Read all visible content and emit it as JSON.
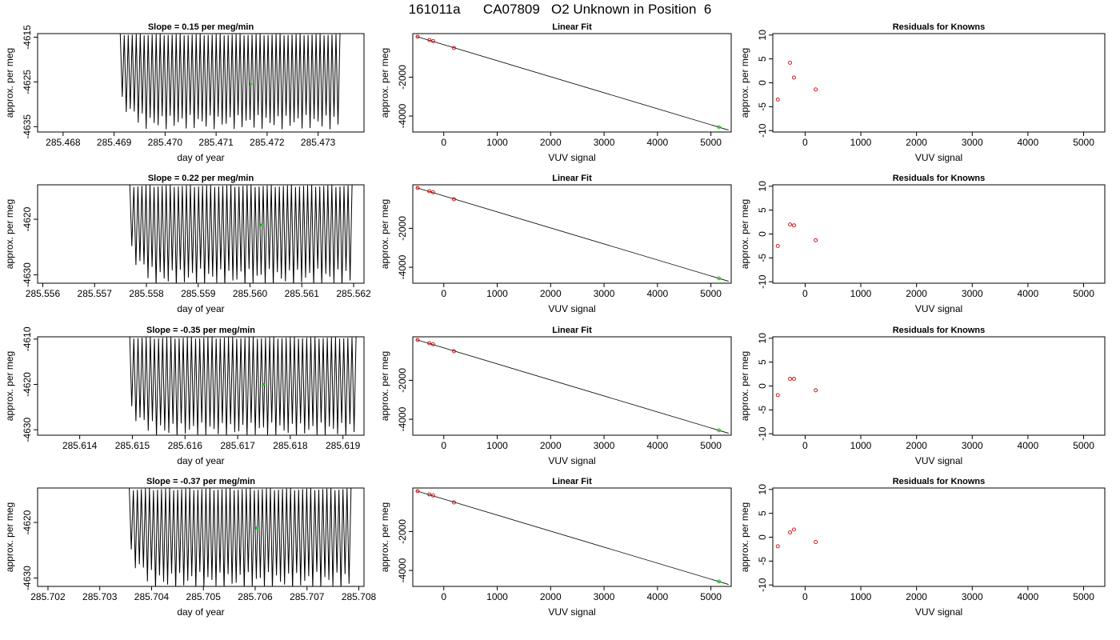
{
  "page": {
    "title": "161011a      CA07809   O2 Unknown in Position  6"
  },
  "chart_data": [
    {
      "type": "line",
      "title": "Slope =  0.15  per meg/min",
      "xlabel": "day of year",
      "ylabel": "approx. per meg",
      "xlim": [
        285.4675,
        285.4739
      ],
      "ylim": [
        -4636.2,
        -4614.2
      ],
      "xticks": [
        "285.468",
        "285.469",
        "285.470",
        "285.471",
        "285.472",
        "285.473"
      ],
      "xtick_values": [
        285.468,
        285.469,
        285.47,
        285.471,
        285.472,
        285.473
      ],
      "yticks": [
        "-4615",
        "-4625",
        "-4635"
      ],
      "ytick_values": [
        -4615,
        -4625,
        -4635
      ],
      "signal": {
        "x_start": 285.46912,
        "x_end": 285.47343,
        "cycles": 55,
        "upper": -4614.2,
        "lower_start": -4629.5,
        "lower_base": -4634.0,
        "upper_end": -4615.5
      },
      "highlight_point": {
        "x": 285.47168,
        "y": -4625.5
      }
    },
    {
      "type": "scatter",
      "title": "Linear Fit",
      "xlabel": "VUV signal",
      "ylabel": "approx. per meg",
      "xlim": [
        -580,
        5380
      ],
      "ylim": [
        -4820,
        240
      ],
      "xticks": [
        "0",
        "1000",
        "2000",
        "3000",
        "4000",
        "5000"
      ],
      "xtick_values": [
        0,
        1000,
        2000,
        3000,
        4000,
        5000
      ],
      "yticks": [
        "-2000",
        "-4000"
      ],
      "ytick_values": [
        -2000,
        -4000
      ],
      "fit_line": {
        "x": [
          -510,
          5330
        ],
        "y": [
          90,
          -4720
        ]
      },
      "knowns": {
        "x": [
          -490,
          -270,
          -200,
          190
        ],
        "y": [
          80,
          -90,
          -145,
          -500
        ]
      },
      "unknown": {
        "x": [
          5150
        ],
        "y": [
          -4570
        ]
      }
    },
    {
      "type": "scatter",
      "title": "Residuals for Knowns",
      "xlabel": "VUV signal",
      "ylabel": "approx. per meg",
      "xlim": [
        -580,
        5380
      ],
      "ylim": [
        -10.3,
        10.3
      ],
      "xticks": [
        "0",
        "1000",
        "2000",
        "3000",
        "4000",
        "5000"
      ],
      "xtick_values": [
        0,
        1000,
        2000,
        3000,
        4000,
        5000
      ],
      "yticks": [
        "10",
        "5",
        "0",
        "-5",
        "-10"
      ],
      "ytick_values": [
        10,
        5,
        0,
        -5,
        -10
      ],
      "residuals": {
        "x": [
          -490,
          -270,
          -200,
          190
        ],
        "y": [
          -3.5,
          4.2,
          1.1,
          -1.4
        ]
      }
    },
    {
      "type": "line",
      "title": "Slope =  0.22  per meg/min",
      "xlabel": "day of year",
      "ylabel": "approx. per meg",
      "xlim": [
        285.5559,
        285.5622
      ],
      "ylim": [
        -4631.5,
        -4613.8
      ],
      "xticks": [
        "285.556",
        "285.557",
        "285.558",
        "285.559",
        "285.560",
        "285.561",
        "285.562"
      ],
      "xtick_values": [
        285.556,
        285.557,
        285.558,
        285.559,
        285.56,
        285.561,
        285.562
      ],
      "yticks": [
        "-4620",
        "-4630"
      ],
      "ytick_values": [
        -4620,
        -4630
      ],
      "signal": {
        "x_start": 285.55768,
        "x_end": 285.56197,
        "cycles": 55,
        "upper": -4613.8,
        "lower_start": -4626.0,
        "lower_base": -4630.5,
        "upper_end": -4614.5
      },
      "highlight_point": {
        "x": 285.56022,
        "y": -4621.0
      }
    },
    {
      "type": "scatter",
      "title": "Linear Fit",
      "xlabel": "VUV signal",
      "ylabel": "approx. per meg",
      "xlim": [
        -580,
        5380
      ],
      "ylim": [
        -4820,
        240
      ],
      "xticks": [
        "0",
        "1000",
        "2000",
        "3000",
        "4000",
        "5000"
      ],
      "xtick_values": [
        0,
        1000,
        2000,
        3000,
        4000,
        5000
      ],
      "yticks": [
        "-2000",
        "-4000"
      ],
      "ytick_values": [
        -2000,
        -4000
      ],
      "fit_line": {
        "x": [
          -510,
          5330
        ],
        "y": [
          90,
          -4720
        ]
      },
      "knowns": {
        "x": [
          -490,
          -270,
          -200,
          190
        ],
        "y": [
          80,
          -90,
          -145,
          -500
        ]
      },
      "unknown": {
        "x": [
          5150
        ],
        "y": [
          -4570
        ]
      }
    },
    {
      "type": "scatter",
      "title": "Residuals for Knowns",
      "xlabel": "VUV signal",
      "ylabel": "approx. per meg",
      "xlim": [
        -580,
        5380
      ],
      "ylim": [
        -10.3,
        10.3
      ],
      "xticks": [
        "0",
        "1000",
        "2000",
        "3000",
        "4000",
        "5000"
      ],
      "xtick_values": [
        0,
        1000,
        2000,
        3000,
        4000,
        5000
      ],
      "yticks": [
        "10",
        "5",
        "0",
        "-5",
        "-10"
      ],
      "ytick_values": [
        10,
        5,
        0,
        -5,
        -10
      ],
      "residuals": {
        "x": [
          -490,
          -270,
          -200,
          190
        ],
        "y": [
          -2.5,
          2.0,
          1.8,
          -1.3
        ]
      }
    },
    {
      "type": "line",
      "title": "Slope =  -0.35  per meg/min",
      "xlabel": "day of year",
      "ylabel": "approx. per meg",
      "xlim": [
        285.6132,
        285.6194
      ],
      "ylim": [
        -4631.2,
        -4609.5
      ],
      "xticks": [
        "285.614",
        "285.615",
        "285.616",
        "285.617",
        "285.618",
        "285.619"
      ],
      "xtick_values": [
        285.614,
        285.615,
        285.616,
        285.617,
        285.618,
        285.619
      ],
      "yticks": [
        "-4610",
        "-4620",
        "-4630"
      ],
      "ytick_values": [
        -4610,
        -4620,
        -4630
      ],
      "signal": {
        "x_start": 285.61495,
        "x_end": 285.61925,
        "cycles": 55,
        "upper": -4609.5,
        "lower_start": -4626.0,
        "lower_base": -4630.0,
        "upper_end": -4610.5
      },
      "highlight_point": {
        "x": 285.61749,
        "y": -4620.0
      }
    },
    {
      "type": "scatter",
      "title": "Linear Fit",
      "xlabel": "VUV signal",
      "ylabel": "approx. per meg",
      "xlim": [
        -580,
        5380
      ],
      "ylim": [
        -4820,
        240
      ],
      "xticks": [
        "0",
        "1000",
        "2000",
        "3000",
        "4000",
        "5000"
      ],
      "xtick_values": [
        0,
        1000,
        2000,
        3000,
        4000,
        5000
      ],
      "yticks": [
        "-2000",
        "-4000"
      ],
      "ytick_values": [
        -2000,
        -4000
      ],
      "fit_line": {
        "x": [
          -510,
          5330
        ],
        "y": [
          90,
          -4720
        ]
      },
      "knowns": {
        "x": [
          -490,
          -270,
          -200,
          190
        ],
        "y": [
          80,
          -90,
          -145,
          -500
        ]
      },
      "unknown": {
        "x": [
          5150
        ],
        "y": [
          -4570
        ]
      }
    },
    {
      "type": "scatter",
      "title": "Residuals for Knowns",
      "xlabel": "VUV signal",
      "ylabel": "approx. per meg",
      "xlim": [
        -580,
        5380
      ],
      "ylim": [
        -10.3,
        10.3
      ],
      "xticks": [
        "0",
        "1000",
        "2000",
        "3000",
        "4000",
        "5000"
      ],
      "xtick_values": [
        0,
        1000,
        2000,
        3000,
        4000,
        5000
      ],
      "yticks": [
        "10",
        "5",
        "0",
        "-5",
        "-10"
      ],
      "ytick_values": [
        10,
        5,
        0,
        -5,
        -10
      ],
      "residuals": {
        "x": [
          -490,
          -270,
          -200,
          190
        ],
        "y": [
          -1.9,
          1.5,
          1.5,
          -0.9
        ]
      }
    },
    {
      "type": "line",
      "title": "Slope =  -0.37  per meg/min",
      "xlabel": "day of year",
      "ylabel": "approx. per meg",
      "xlim": [
        285.7018,
        285.7081
      ],
      "ylim": [
        -4631.5,
        -4613.8
      ],
      "xticks": [
        "285.702",
        "285.703",
        "285.704",
        "285.705",
        "285.706",
        "285.707",
        "285.708"
      ],
      "xtick_values": [
        285.702,
        285.703,
        285.704,
        285.705,
        285.706,
        285.707,
        285.708
      ],
      "yticks": [
        "-4620",
        "-4630"
      ],
      "ytick_values": [
        -4620,
        -4630
      ],
      "signal": {
        "x_start": 285.70357,
        "x_end": 285.70785,
        "cycles": 55,
        "upper": -4613.8,
        "lower_start": -4626.0,
        "lower_base": -4630.5,
        "upper_end": -4614.5
      },
      "highlight_point": {
        "x": 285.70603,
        "y": -4621.0
      }
    },
    {
      "type": "scatter",
      "title": "Linear Fit",
      "xlabel": "VUV signal",
      "ylabel": "approx. per meg",
      "xlim": [
        -580,
        5380
      ],
      "ylim": [
        -4820,
        240
      ],
      "xticks": [
        "0",
        "1000",
        "2000",
        "3000",
        "4000",
        "5000"
      ],
      "xtick_values": [
        0,
        1000,
        2000,
        3000,
        4000,
        5000
      ],
      "yticks": [
        "-2000",
        "-4000"
      ],
      "ytick_values": [
        -2000,
        -4000
      ],
      "fit_line": {
        "x": [
          -510,
          5330
        ],
        "y": [
          90,
          -4720
        ]
      },
      "knowns": {
        "x": [
          -490,
          -270,
          -200,
          190
        ],
        "y": [
          80,
          -90,
          -145,
          -500
        ]
      },
      "unknown": {
        "x": [
          5150
        ],
        "y": [
          -4570
        ]
      }
    },
    {
      "type": "scatter",
      "title": "Residuals for Knowns",
      "xlabel": "VUV signal",
      "ylabel": "approx. per meg",
      "xlim": [
        -580,
        5380
      ],
      "ylim": [
        -10.3,
        10.3
      ],
      "xticks": [
        "0",
        "1000",
        "2000",
        "3000",
        "4000",
        "5000"
      ],
      "xtick_values": [
        0,
        1000,
        2000,
        3000,
        4000,
        5000
      ],
      "yticks": [
        "10",
        "5",
        "0",
        "-5",
        "-10"
      ],
      "residuals": {
        "x": [
          -490,
          -270,
          -200,
          190
        ],
        "y": [
          -1.9,
          1.0,
          1.6,
          -1.0
        ]
      },
      "ytick_values": [
        10,
        5,
        0,
        -5,
        -10
      ]
    }
  ],
  "colors": {
    "series_line": "#000000",
    "known_points": "#cc0000",
    "unknown_point": "#00cc00",
    "axes": "#000000"
  }
}
